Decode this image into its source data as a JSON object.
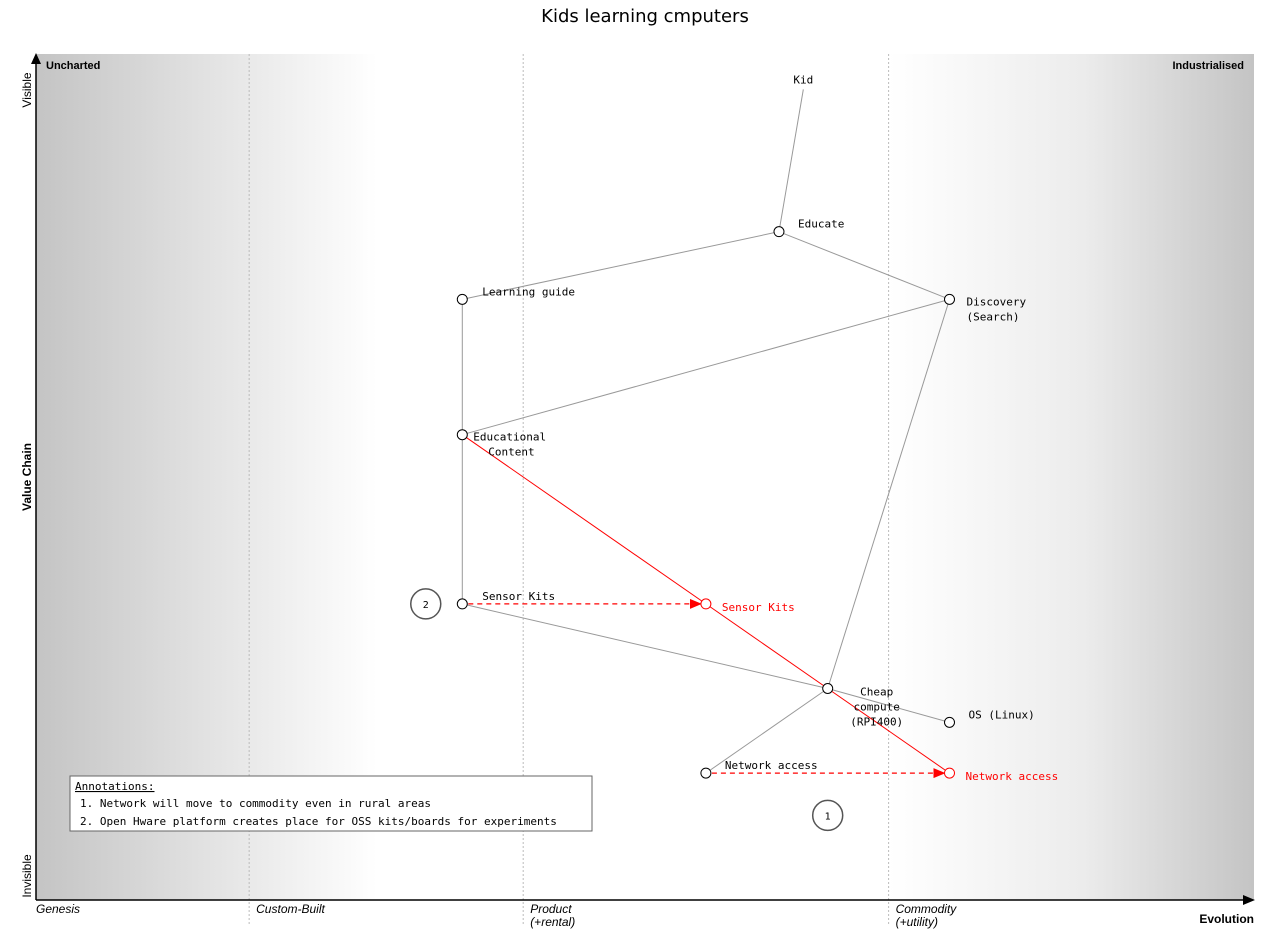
{
  "title": "Kids learning cmputers",
  "corners": {
    "top_left": "Uncharted",
    "top_right": "Industrialised"
  },
  "y_axis": {
    "label": "Value Chain",
    "top": "Visible",
    "bottom": "Invisible"
  },
  "x_axis": {
    "label": "Evolution"
  },
  "stages": [
    {
      "line1": "Genesis",
      "line2": ""
    },
    {
      "line1": "Custom-Built",
      "line2": ""
    },
    {
      "line1": "Product",
      "line2": "(+rental)"
    },
    {
      "line1": "Commodity",
      "line2": "(+utility)"
    }
  ],
  "components": [
    {
      "id": "kid",
      "lines": [
        "Kid"
      ],
      "visibility": 0.97,
      "maturity": 0.63,
      "circle": false,
      "color": "black"
    },
    {
      "id": "educate",
      "lines": [
        "Educate"
      ],
      "visibility": 0.79,
      "maturity": 0.61,
      "circle": true,
      "color": "black"
    },
    {
      "id": "learning_guide",
      "lines": [
        "Learning guide"
      ],
      "visibility": 0.71,
      "maturity": 0.35,
      "circle": true,
      "color": "black"
    },
    {
      "id": "discovery",
      "lines": [
        "Discovery",
        "(Search)"
      ],
      "visibility": 0.71,
      "maturity": 0.75,
      "circle": true,
      "color": "black"
    },
    {
      "id": "educational_content",
      "lines": [
        "Educational",
        "Content"
      ],
      "visibility": 0.55,
      "maturity": 0.35,
      "circle": true,
      "color": "black"
    },
    {
      "id": "sensor_kits",
      "lines": [
        "Sensor Kits"
      ],
      "visibility": 0.35,
      "maturity": 0.35,
      "circle": true,
      "color": "black"
    },
    {
      "id": "sensor_kits_future",
      "lines": [
        "Sensor Kits"
      ],
      "visibility": 0.35,
      "maturity": 0.55,
      "circle": true,
      "color": "red"
    },
    {
      "id": "cheap_compute",
      "lines": [
        "Cheap",
        "compute",
        "(RPI400)"
      ],
      "visibility": 0.25,
      "maturity": 0.65,
      "circle": true,
      "color": "black"
    },
    {
      "id": "os_linux",
      "lines": [
        "OS (Linux)"
      ],
      "visibility": 0.21,
      "maturity": 0.75,
      "circle": true,
      "color": "black"
    },
    {
      "id": "network_access",
      "lines": [
        "Network access"
      ],
      "visibility": 0.15,
      "maturity": 0.55,
      "circle": true,
      "color": "black"
    },
    {
      "id": "network_access_future",
      "lines": [
        "Network access"
      ],
      "visibility": 0.15,
      "maturity": 0.75,
      "circle": true,
      "color": "red"
    }
  ],
  "links": [
    {
      "from": "kid",
      "to": "educate",
      "color": "gray"
    },
    {
      "from": "educate",
      "to": "learning_guide",
      "color": "gray"
    },
    {
      "from": "educate",
      "to": "discovery",
      "color": "gray"
    },
    {
      "from": "learning_guide",
      "to": "educational_content",
      "color": "gray"
    },
    {
      "from": "discovery",
      "to": "educational_content",
      "color": "gray"
    },
    {
      "from": "discovery",
      "to": "cheap_compute",
      "color": "gray"
    },
    {
      "from": "educational_content",
      "to": "sensor_kits",
      "color": "gray"
    },
    {
      "from": "sensor_kits",
      "to": "cheap_compute",
      "color": "gray"
    },
    {
      "from": "cheap_compute",
      "to": "os_linux",
      "color": "gray"
    },
    {
      "from": "cheap_compute",
      "to": "network_access",
      "color": "gray"
    },
    {
      "from": "educational_content",
      "to": "sensor_kits_future",
      "color": "red"
    },
    {
      "from": "sensor_kits_future",
      "to": "cheap_compute",
      "color": "red"
    },
    {
      "from": "cheap_compute",
      "to": "network_access_future",
      "color": "red"
    }
  ],
  "evolutions": [
    {
      "from": "sensor_kits",
      "to": "sensor_kits_future"
    },
    {
      "from": "network_access",
      "to": "network_access_future"
    }
  ],
  "annotation_markers": [
    {
      "number": "1",
      "visibility": 0.1,
      "maturity": 0.65
    },
    {
      "number": "2",
      "visibility": 0.35,
      "maturity": 0.32
    }
  ],
  "annotations": {
    "heading": "Annotations:",
    "items": [
      "1. Network will move to commodity even in rural areas",
      "2. Open Hware platform creates place for OSS kits/boards for experiments"
    ]
  },
  "colors": {
    "link": "#999999",
    "evolve": "#ff0000",
    "axis": "#000000",
    "stage_line": "#bbbbbb"
  }
}
